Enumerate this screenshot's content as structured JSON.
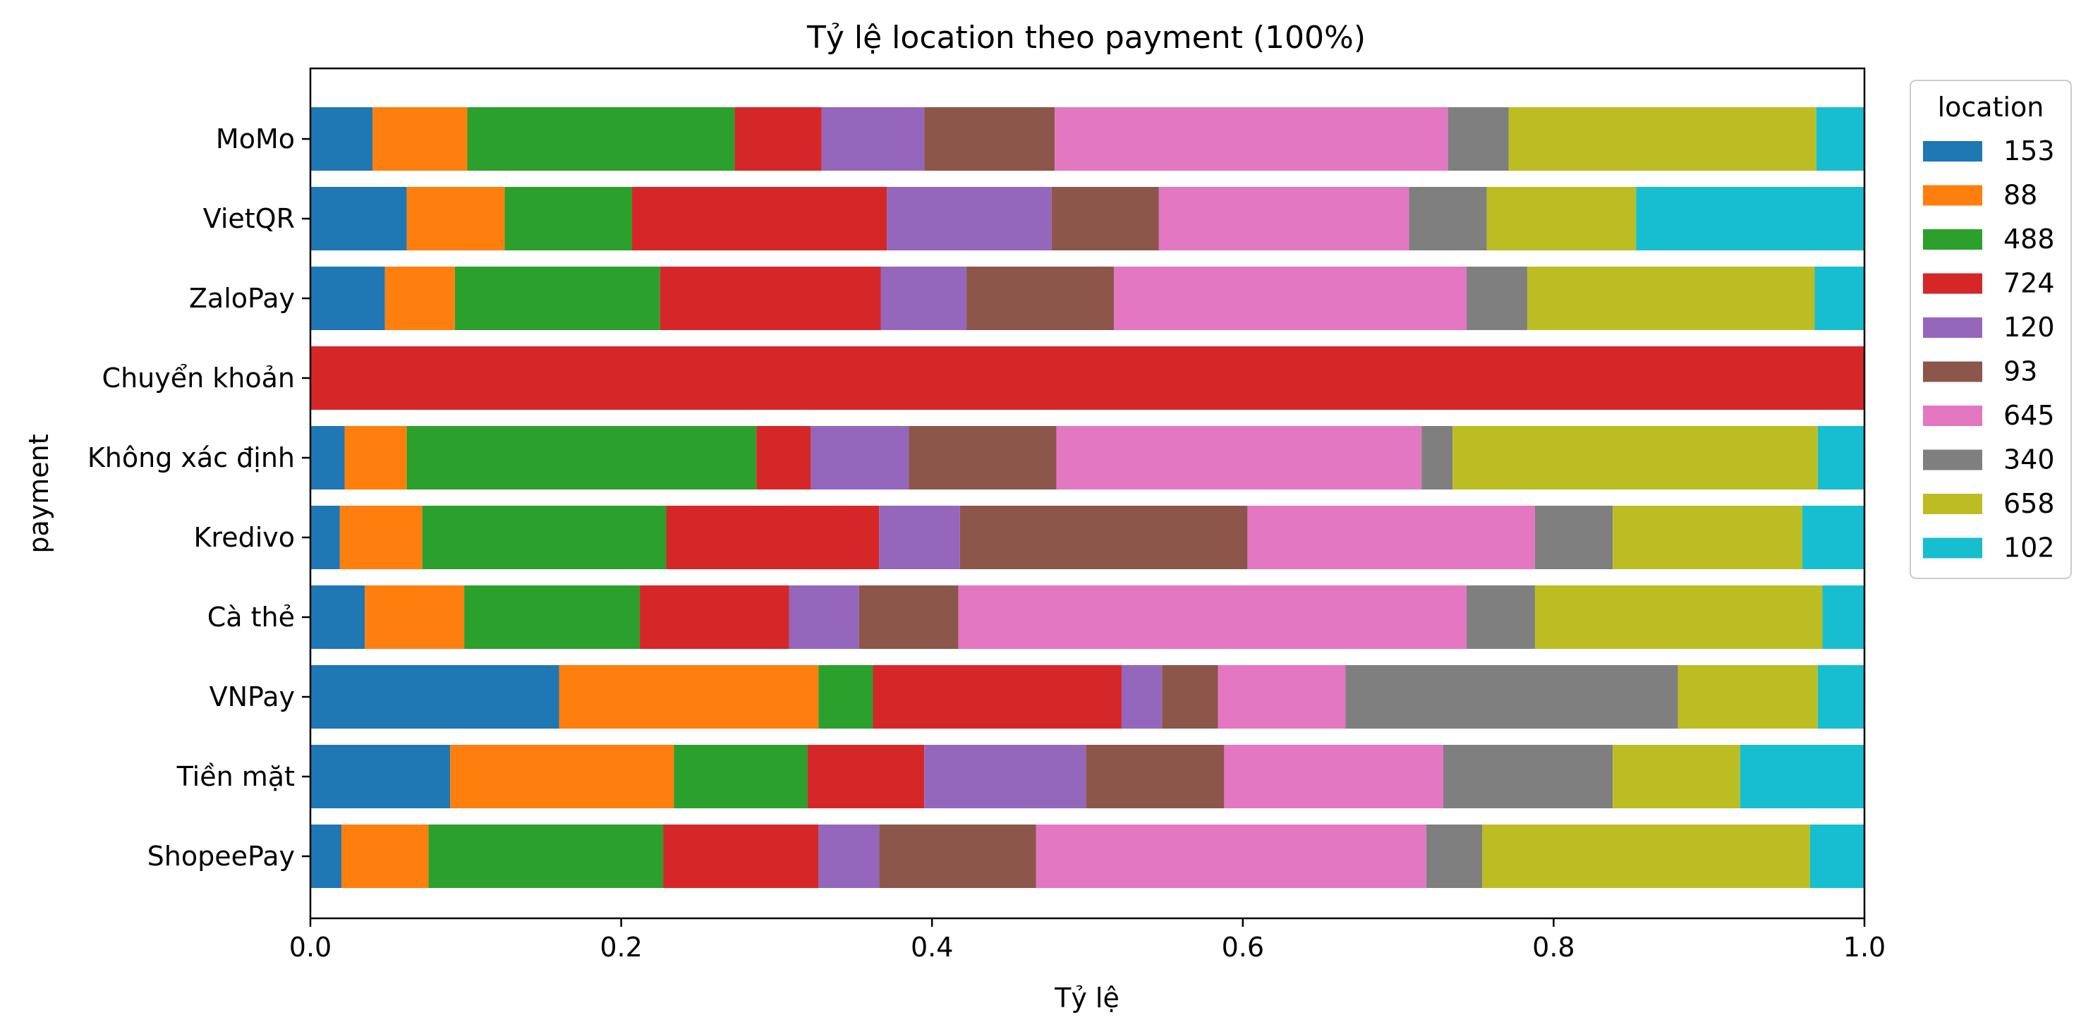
{
  "chart_data": {
    "type": "bar",
    "orientation": "horizontal",
    "stacked": true,
    "normalized": true,
    "title": "Tỷ lệ location theo payment (100%)",
    "xlabel": "Tỷ lệ",
    "ylabel": "payment",
    "xlim": [
      0,
      1
    ],
    "x_ticks": [
      "0.0",
      "0.2",
      "0.4",
      "0.6",
      "0.8",
      "1.0"
    ],
    "grid": false,
    "legend": {
      "title": "location",
      "placement": "outside-right"
    },
    "categories": [
      "MoMo",
      "VietQR",
      "ZaloPay",
      "Chuyển khoản",
      "Không xác định",
      "Kredivo",
      "Cà thẻ",
      "VNPay",
      "Tiền mặt",
      "ShopeePay"
    ],
    "series": [
      {
        "name": "153",
        "color": "#1f77b4",
        "values": [
          0.04,
          0.062,
          0.048,
          0.0,
          0.022,
          0.019,
          0.035,
          0.16,
          0.09,
          0.02
        ]
      },
      {
        "name": "88",
        "color": "#ff7f0e",
        "values": [
          0.061,
          0.063,
          0.045,
          0.0,
          0.04,
          0.053,
          0.064,
          0.167,
          0.144,
          0.056
        ]
      },
      {
        "name": "488",
        "color": "#2ca02c",
        "values": [
          0.172,
          0.082,
          0.132,
          0.0,
          0.225,
          0.157,
          0.113,
          0.035,
          0.086,
          0.151
        ]
      },
      {
        "name": "724",
        "color": "#d62728",
        "values": [
          0.056,
          0.164,
          0.142,
          1.0,
          0.035,
          0.137,
          0.096,
          0.16,
          0.075,
          0.1
        ]
      },
      {
        "name": "120",
        "color": "#9467bd",
        "values": [
          0.066,
          0.106,
          0.055,
          0.0,
          0.063,
          0.052,
          0.045,
          0.026,
          0.104,
          0.039
        ]
      },
      {
        "name": "93",
        "color": "#8c564b",
        "values": [
          0.084,
          0.069,
          0.095,
          0.0,
          0.095,
          0.185,
          0.064,
          0.036,
          0.089,
          0.101
        ]
      },
      {
        "name": "645",
        "color": "#e377c2",
        "values": [
          0.253,
          0.161,
          0.227,
          0.0,
          0.235,
          0.185,
          0.327,
          0.082,
          0.141,
          0.251
        ]
      },
      {
        "name": "340",
        "color": "#7f7f7f",
        "values": [
          0.039,
          0.05,
          0.039,
          0.0,
          0.02,
          0.05,
          0.044,
          0.214,
          0.109,
          0.036
        ]
      },
      {
        "name": "658",
        "color": "#bcbd22",
        "values": [
          0.198,
          0.096,
          0.185,
          0.0,
          0.235,
          0.122,
          0.185,
          0.09,
          0.082,
          0.211
        ]
      },
      {
        "name": "102",
        "color": "#17becf",
        "values": [
          0.031,
          0.147,
          0.032,
          0.0,
          0.03,
          0.04,
          0.027,
          0.03,
          0.08,
          0.035
        ]
      }
    ]
  }
}
